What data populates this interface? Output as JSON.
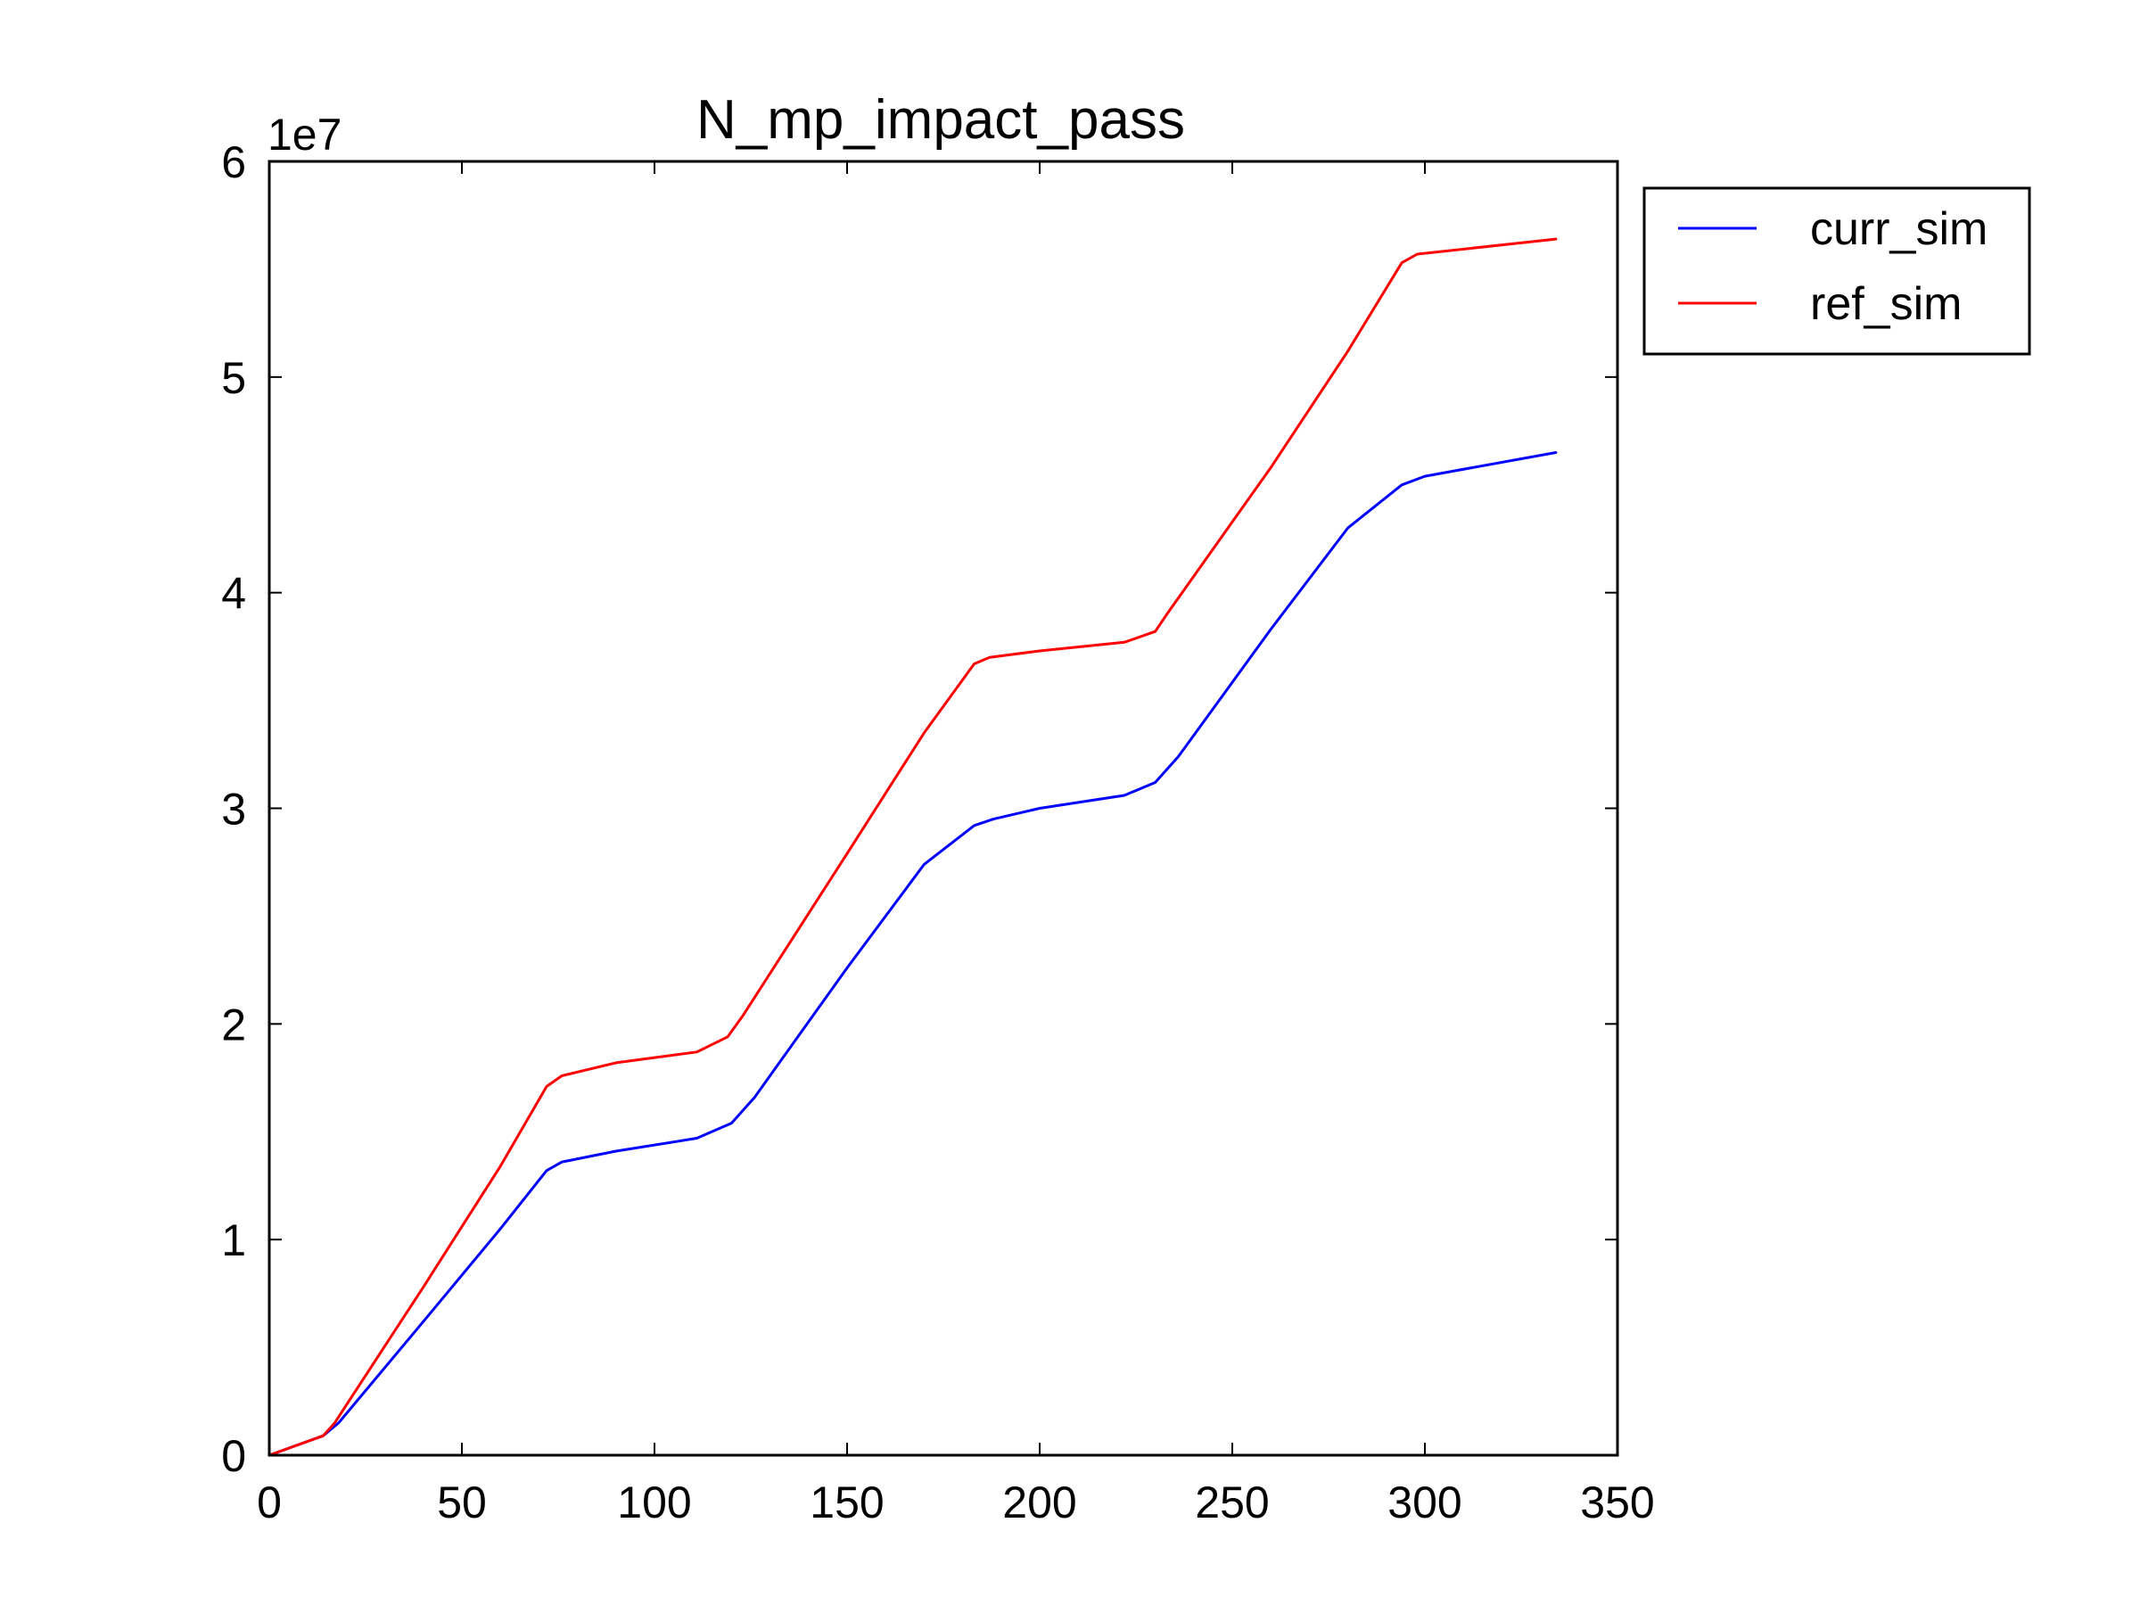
{
  "chart_data": {
    "type": "line",
    "title": "N_mp_impact_pass",
    "xlabel": "",
    "ylabel": "",
    "xlim": [
      0,
      350
    ],
    "ylim": [
      0,
      6
    ],
    "y_multiplier_label": "1e7",
    "xticks": [
      0,
      50,
      100,
      150,
      200,
      250,
      300,
      350
    ],
    "xtick_labels": [
      "0",
      "50",
      "100",
      "150",
      "200",
      "250",
      "300",
      "350"
    ],
    "yticks": [
      0,
      1,
      2,
      3,
      4,
      5,
      6
    ],
    "ytick_labels": [
      "0",
      "1",
      "2",
      "3",
      "4",
      "5",
      "6"
    ],
    "grid": false,
    "legend_position": "outside-top-right",
    "series": [
      {
        "name": "curr_sim",
        "color": "#0000ff",
        "x": [
          0,
          14,
          18,
          40,
          60,
          72,
          76,
          90,
          111,
          120,
          126,
          150,
          170,
          183,
          188,
          200,
          222,
          230,
          236,
          260,
          280,
          294,
          300,
          334
        ],
        "y": [
          0,
          0.09,
          0.15,
          0.62,
          1.05,
          1.32,
          1.36,
          1.41,
          1.47,
          1.54,
          1.66,
          2.26,
          2.74,
          2.92,
          2.95,
          3.0,
          3.06,
          3.12,
          3.24,
          3.83,
          4.3,
          4.5,
          4.54,
          4.65
        ]
      },
      {
        "name": "ref_sim",
        "color": "#ff0000",
        "x": [
          0,
          14,
          17,
          40,
          60,
          72,
          76,
          90,
          111,
          119,
          123,
          150,
          170,
          183,
          187,
          200,
          222,
          230,
          233,
          260,
          280,
          294,
          298,
          334
        ],
        "y": [
          0,
          0.09,
          0.15,
          0.78,
          1.34,
          1.71,
          1.76,
          1.82,
          1.87,
          1.94,
          2.04,
          2.79,
          3.35,
          3.67,
          3.7,
          3.73,
          3.77,
          3.82,
          3.9,
          4.58,
          5.12,
          5.53,
          5.57,
          5.64
        ]
      }
    ]
  }
}
